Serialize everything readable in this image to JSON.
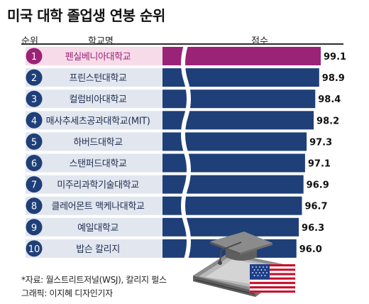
{
  "title": "미국 대학 졸업생 연봉 순위",
  "headers": {
    "rank": "순위",
    "school": "학교명",
    "score": "점수"
  },
  "footnote": "*자료: 월스트리트저널(WSJ), 칼리지 펄스",
  "credit": "그래픽: 이지혜 디자인기자",
  "colors": {
    "highlight": "#9b2377",
    "bar": "#1f3f78",
    "label_bg_highlight": "#f7dbe9",
    "label_bg": "#e1e6ef"
  },
  "chart_data": {
    "type": "bar",
    "orientation": "horizontal",
    "axis_break": true,
    "categories": [
      "펜실베니아대학교",
      "프린스턴대학교",
      "컬럼비아대학교",
      "매사추세츠공과대학교(MIT)",
      "하버드대학교",
      "스탠퍼드대학교",
      "미주리과학기술대학교",
      "클레어몬트 맥케나대학교",
      "예일대학교",
      "밥슨 칼리지"
    ],
    "ranks": [
      "1",
      "2",
      "3",
      "4",
      "5",
      "6",
      "7",
      "8",
      "9",
      "10"
    ],
    "values": [
      99.1,
      98.9,
      98.4,
      98.2,
      97.3,
      97.1,
      96.9,
      96.7,
      96.3,
      96.0
    ],
    "value_labels": [
      "99.1",
      "98.9",
      "98.4",
      "98.2",
      "97.3",
      "97.1",
      "96.9",
      "96.7",
      "96.3",
      "96.0"
    ],
    "highlight_index": 0
  }
}
